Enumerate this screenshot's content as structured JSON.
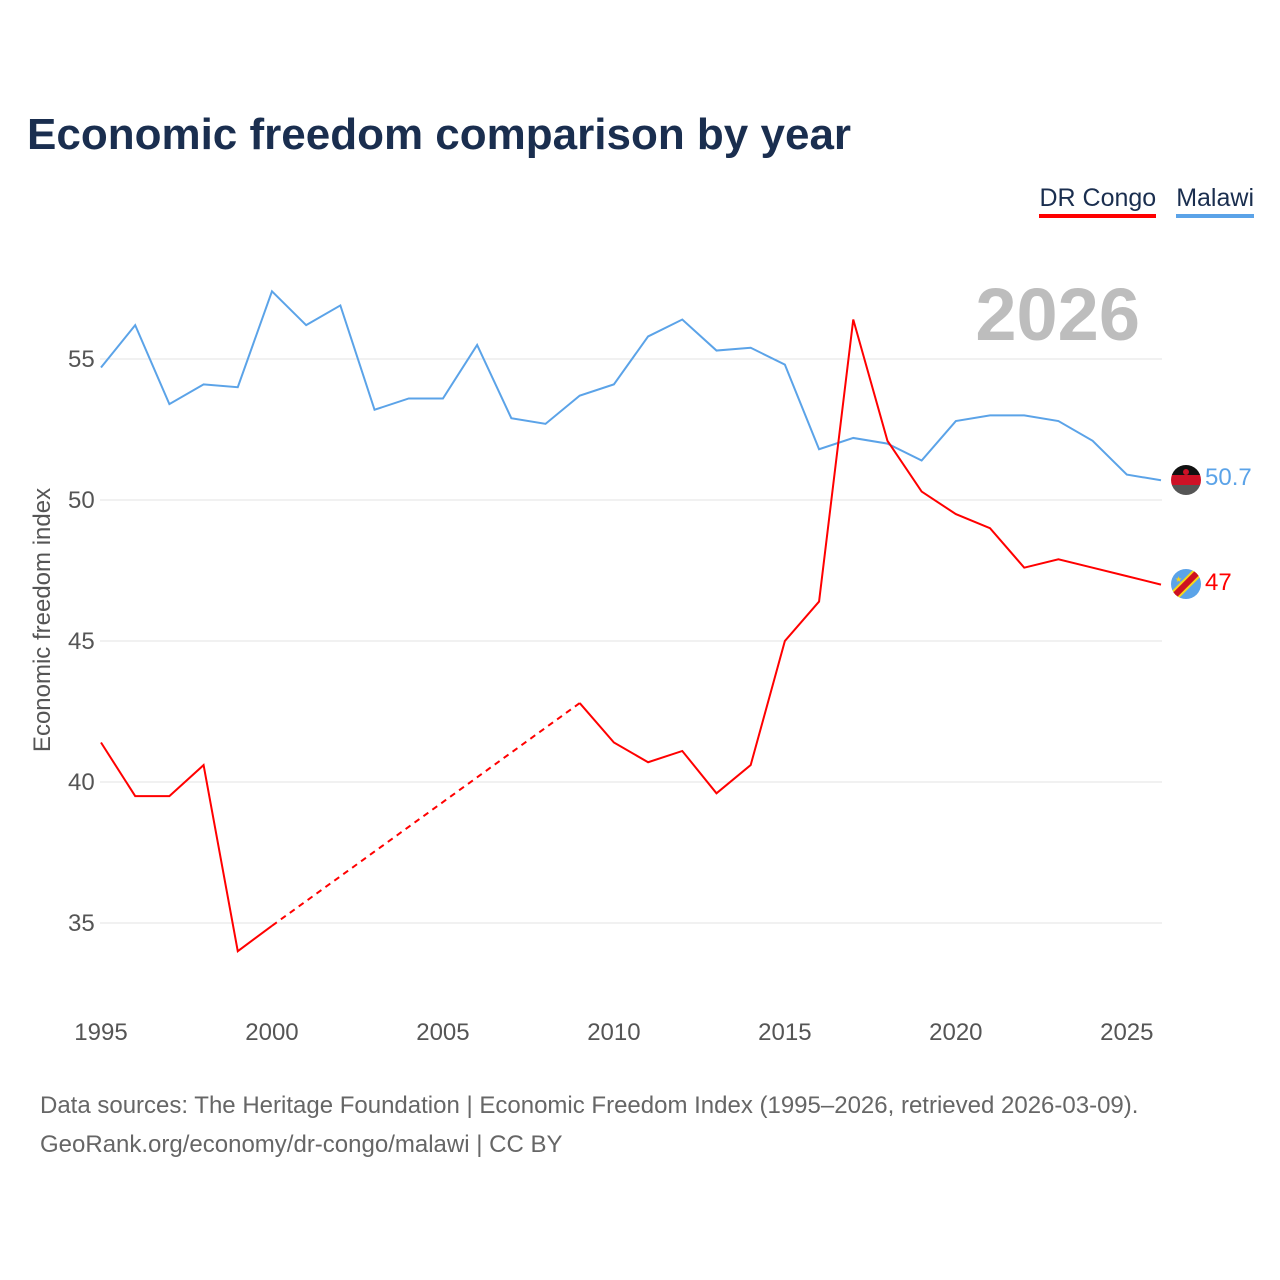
{
  "chart_data": {
    "type": "line",
    "title": "Economic freedom comparison by year",
    "xlabel": "",
    "ylabel": "Economic freedom index",
    "xlim": [
      1995,
      2026
    ],
    "ylim": [
      33,
      58
    ],
    "x_ticks": [
      "1995",
      "2000",
      "2005",
      "2010",
      "2015",
      "2020",
      "2025"
    ],
    "y_ticks": [
      "35",
      "40",
      "45",
      "50",
      "55"
    ],
    "grid": true,
    "legend_position": "top-right",
    "year_watermark": "2026",
    "x": [
      1995,
      1996,
      1997,
      1998,
      1999,
      2000,
      2001,
      2002,
      2003,
      2004,
      2005,
      2006,
      2007,
      2008,
      2009,
      2010,
      2011,
      2012,
      2013,
      2014,
      2015,
      2016,
      2017,
      2018,
      2019,
      2020,
      2021,
      2022,
      2023,
      2024,
      2025,
      2026
    ],
    "series": [
      {
        "name": "DR Congo",
        "color": "#ff0000",
        "end_label": "47",
        "values": [
          41.4,
          39.5,
          39.5,
          40.6,
          34.0,
          34.9,
          null,
          null,
          null,
          null,
          null,
          null,
          null,
          null,
          42.8,
          41.4,
          40.7,
          41.1,
          39.6,
          40.6,
          45.0,
          46.4,
          56.4,
          52.1,
          50.3,
          49.5,
          49.0,
          47.6,
          47.9,
          47.6,
          47.3,
          47.0
        ]
      },
      {
        "name": "Malawi",
        "color": "#5ba3e8",
        "end_label": "50.7",
        "values": [
          54.7,
          56.2,
          53.4,
          54.1,
          54.0,
          57.4,
          56.2,
          56.9,
          53.2,
          53.6,
          53.6,
          55.5,
          52.9,
          52.7,
          53.7,
          54.1,
          55.8,
          56.4,
          55.3,
          55.4,
          54.8,
          51.8,
          52.2,
          52.0,
          51.4,
          52.8,
          53.0,
          53.0,
          52.8,
          52.1,
          50.9,
          50.7
        ]
      }
    ]
  },
  "footer": {
    "line1": "Data sources: The Heritage Foundation | Economic Freedom Index (1995–2026, retrieved 2026-03-09).",
    "line2": "GeoRank.org/economy/dr-congo/malawi | CC BY"
  }
}
